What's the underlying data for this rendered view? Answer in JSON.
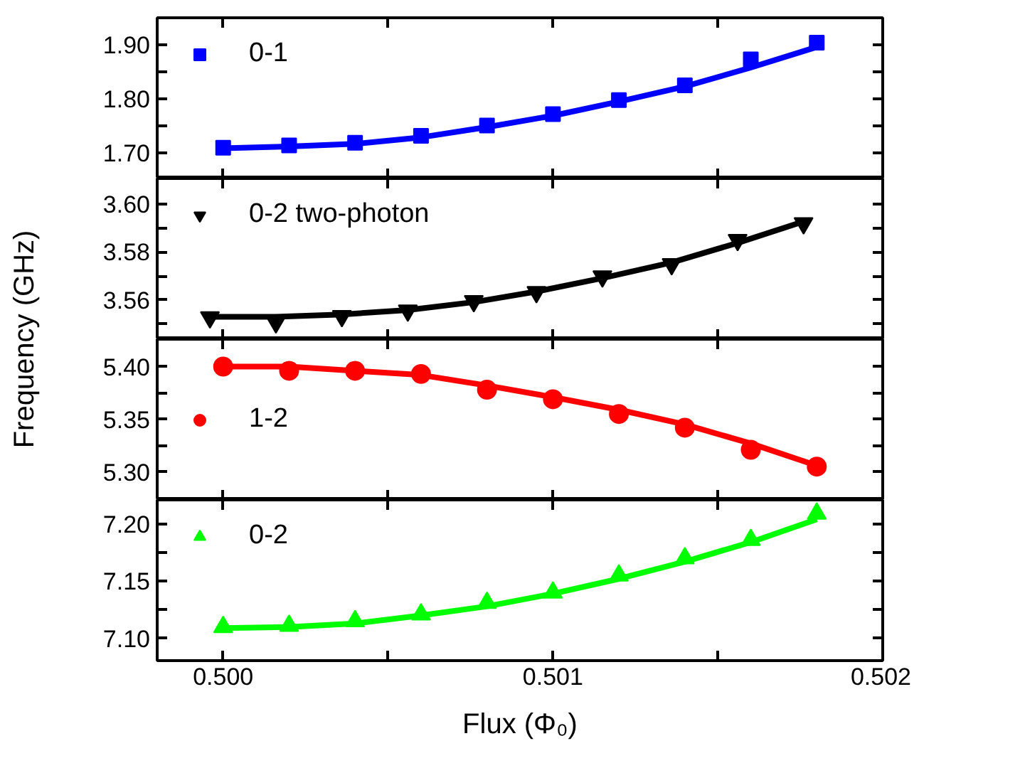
{
  "chart_data": [
    {
      "type": "scatter",
      "ylabel": "Frequency (GHz)",
      "xlim": [
        0.4998,
        0.502
      ],
      "xticks": [
        {
          "value": 0.5,
          "label": null
        },
        {
          "value": 0.5005,
          "label": null
        },
        {
          "value": 0.501,
          "label": null
        },
        {
          "value": 0.5015,
          "label": null
        },
        {
          "value": 0.502,
          "label": null
        }
      ],
      "ylim": [
        1.653,
        1.95
      ],
      "yticks": [
        {
          "value": 1.7,
          "label": "1.70"
        },
        {
          "value": 1.75,
          "label": null
        },
        {
          "value": 1.8,
          "label": "1.80"
        },
        {
          "value": 1.85,
          "label": null
        },
        {
          "value": 1.9,
          "label": "1.90"
        }
      ],
      "tick_labels": "y",
      "legend": "top left",
      "x": [
        0.5,
        0.5002,
        0.5004,
        0.5006,
        0.5008,
        0.501,
        0.5012,
        0.5014,
        0.5016,
        0.5018
      ],
      "series": [
        {
          "name": "0-1",
          "color": "#0000ff",
          "marker": "square",
          "values": [
            1.71,
            1.714,
            1.719,
            1.732,
            1.751,
            1.772,
            1.798,
            1.825,
            1.873,
            1.904
          ]
        },
        {
          "type": "line",
          "color": "#0000ff",
          "line_style": "solid",
          "values": [
            1.709,
            1.712,
            1.717,
            1.729,
            1.748,
            1.769,
            1.795,
            1.823,
            1.858,
            1.896
          ]
        }
      ]
    },
    {
      "type": "scatter",
      "xlim": [
        0.4998,
        0.502
      ],
      "xticks": [
        {
          "value": 0.5,
          "label": null
        },
        {
          "value": 0.5005,
          "label": null
        },
        {
          "value": 0.501,
          "label": null
        },
        {
          "value": 0.5015,
          "label": null
        },
        {
          "value": 0.502,
          "label": null
        }
      ],
      "ylim": [
        3.5437,
        3.6105
      ],
      "yticks": [
        {
          "value": 3.55,
          "label": null
        },
        {
          "value": 3.56,
          "label": "3.56"
        },
        {
          "value": 3.57,
          "label": null
        },
        {
          "value": 3.58,
          "label": "3.58"
        },
        {
          "value": 3.59,
          "label": null
        },
        {
          "value": 3.6,
          "label": "3.60"
        }
      ],
      "tick_labels": "y",
      "legend": "top left",
      "x": [
        0.49996,
        0.50016,
        0.50036,
        0.50056,
        0.50076,
        0.50095,
        0.50115,
        0.50136,
        0.50156,
        0.50176
      ],
      "series": [
        {
          "name": "0-2 two-photon",
          "color": "#000000",
          "values": [
            3.5528,
            3.5507,
            3.5533,
            3.5556,
            3.5595,
            3.5633,
            3.5698,
            3.5749,
            3.5849,
            3.5919
          ]
        },
        {
          "type": "line",
          "color": "#000000",
          "line_style": "solid",
          "values": [
            3.553,
            3.553,
            3.554,
            3.5558,
            3.5591,
            3.5635,
            3.5691,
            3.5756,
            3.5837,
            3.5926
          ]
        }
      ]
    },
    {
      "type": "scatter",
      "xlim": [
        0.4998,
        0.502
      ],
      "xticks": [
        {
          "value": 0.5,
          "label": null
        },
        {
          "value": 0.5005,
          "label": null
        },
        {
          "value": 0.501,
          "label": null
        },
        {
          "value": 0.5015,
          "label": null
        },
        {
          "value": 0.502,
          "label": null
        }
      ],
      "ylim": [
        5.2734,
        5.426
      ],
      "yticks": [
        {
          "value": 5.3,
          "label": "5.30"
        },
        {
          "value": 5.325,
          "label": null
        },
        {
          "value": 5.35,
          "label": "5.35"
        },
        {
          "value": 5.375,
          "label": null
        },
        {
          "value": 5.4,
          "label": "5.40"
        }
      ],
      "tick_labels": "y",
      "legend": "left",
      "x": [
        0.5,
        0.5002,
        0.5004,
        0.5006,
        0.5008,
        0.501,
        0.5012,
        0.5014,
        0.5016,
        0.5018
      ],
      "series": [
        {
          "name": "1-2",
          "color": "#ff0000",
          "marker": "circle",
          "values": [
            5.4,
            5.396,
            5.396,
            5.393,
            5.378,
            5.369,
            5.355,
            5.342,
            5.321,
            5.305
          ]
        },
        {
          "type": "line",
          "color": "#ff0000",
          "line_style": "solid",
          "values": [
            5.4,
            5.4,
            5.396,
            5.392,
            5.382,
            5.371,
            5.359,
            5.345,
            5.327,
            5.306
          ]
        }
      ]
    },
    {
      "type": "scatter",
      "xlabel": "Flux (Φ₀)",
      "xlim": [
        0.4998,
        0.502
      ],
      "xticks": [
        {
          "value": 0.5,
          "label": "0.500"
        },
        {
          "value": 0.5005,
          "label": null
        },
        {
          "value": 0.501,
          "label": "0.501"
        },
        {
          "value": 0.5015,
          "label": null
        },
        {
          "value": 0.502,
          "label": "0.502"
        }
      ],
      "ylim": [
        7.0806,
        7.2209
      ],
      "yticks": [
        {
          "value": 7.1,
          "label": "7.10"
        },
        {
          "value": 7.125,
          "label": null
        },
        {
          "value": 7.15,
          "label": "7.15"
        },
        {
          "value": 7.175,
          "label": null
        },
        {
          "value": 7.2,
          "label": "7.20"
        }
      ],
      "legend": "top left",
      "x": [
        0.5,
        0.5002,
        0.5004,
        0.5006,
        0.5008,
        0.501,
        0.5012,
        0.5014,
        0.5016,
        0.5018
      ],
      "series": [
        {
          "name": "0-2",
          "color": "#00ff00",
          "marker": "triangle",
          "values": [
            7.11,
            7.111,
            7.115,
            7.121,
            7.131,
            7.14,
            7.155,
            7.17,
            7.186,
            7.209
          ]
        },
        {
          "type": "line",
          "color": "#00ff00",
          "line_style": "solid",
          "values": [
            7.109,
            7.11,
            7.113,
            7.12,
            7.128,
            7.139,
            7.152,
            7.167,
            7.184,
            7.204
          ]
        }
      ]
    }
  ]
}
